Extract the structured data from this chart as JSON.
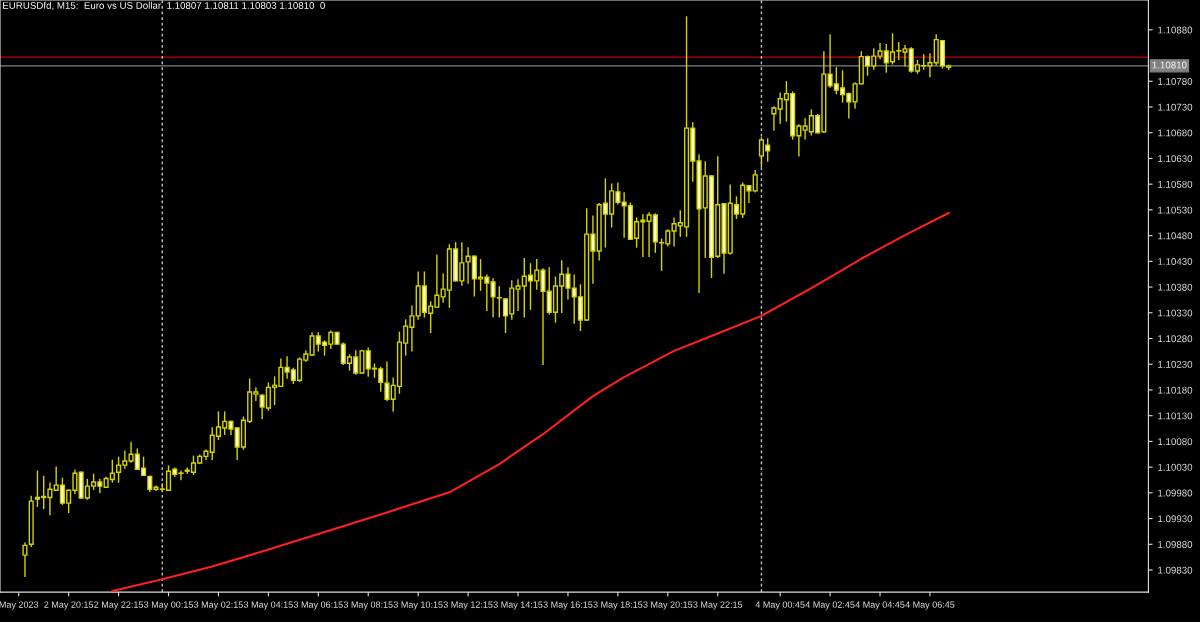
{
  "chart_data": {
    "type": "candlestick",
    "title": "EURUSDfd, M15:  Euro vs US Dollar  1.10807 1.10811 1.10803 1.10810  0",
    "color": "#d4d400",
    "x": [
      "2023-05-02T18:30",
      "2023-05-02T18:45",
      "2023-05-02T19:00",
      "2023-05-02T19:15",
      "2023-05-02T19:30",
      "2023-05-02T19:45",
      "2023-05-02T20:00",
      "2023-05-02T20:15",
      "2023-05-02T20:30",
      "2023-05-02T20:45",
      "2023-05-02T21:00",
      "2023-05-02T21:15",
      "2023-05-02T21:30",
      "2023-05-02T21:45",
      "2023-05-02T22:00",
      "2023-05-02T22:15",
      "2023-05-02T22:30",
      "2023-05-02T22:45",
      "2023-05-02T23:00",
      "2023-05-02T23:15",
      "2023-05-02T23:30",
      "2023-05-02T23:45",
      "2023-05-03T00:00",
      "2023-05-03T00:15",
      "2023-05-03T00:30",
      "2023-05-03T00:45",
      "2023-05-03T01:00",
      "2023-05-03T01:15",
      "2023-05-03T01:30",
      "2023-05-03T01:45",
      "2023-05-03T02:00",
      "2023-05-03T02:15",
      "2023-05-03T02:30",
      "2023-05-03T02:45",
      "2023-05-03T03:00",
      "2023-05-03T03:15",
      "2023-05-03T03:30",
      "2023-05-03T03:45",
      "2023-05-03T04:00",
      "2023-05-03T04:15",
      "2023-05-03T04:30",
      "2023-05-03T04:45",
      "2023-05-03T05:00",
      "2023-05-03T05:15",
      "2023-05-03T05:30",
      "2023-05-03T05:45",
      "2023-05-03T06:00",
      "2023-05-03T06:15",
      "2023-05-03T06:30",
      "2023-05-03T06:45",
      "2023-05-03T07:00",
      "2023-05-03T07:15",
      "2023-05-03T07:30",
      "2023-05-03T07:45",
      "2023-05-03T08:00",
      "2023-05-03T08:15",
      "2023-05-03T08:30",
      "2023-05-03T08:45",
      "2023-05-03T09:00",
      "2023-05-03T09:15",
      "2023-05-03T09:30",
      "2023-05-03T09:45",
      "2023-05-03T10:00",
      "2023-05-03T10:15",
      "2023-05-03T10:30",
      "2023-05-03T10:45",
      "2023-05-03T11:00",
      "2023-05-03T11:15",
      "2023-05-03T11:30",
      "2023-05-03T11:45",
      "2023-05-03T12:00",
      "2023-05-03T12:15",
      "2023-05-03T12:30",
      "2023-05-03T12:45",
      "2023-05-03T13:00",
      "2023-05-03T13:15",
      "2023-05-03T13:30",
      "2023-05-03T13:45",
      "2023-05-03T14:00",
      "2023-05-03T14:15",
      "2023-05-03T14:30",
      "2023-05-03T14:45",
      "2023-05-03T15:00",
      "2023-05-03T15:15",
      "2023-05-03T15:30",
      "2023-05-03T15:45",
      "2023-05-03T16:00",
      "2023-05-03T16:15",
      "2023-05-03T16:30",
      "2023-05-03T16:45",
      "2023-05-03T17:00",
      "2023-05-03T17:15",
      "2023-05-03T17:30",
      "2023-05-03T17:45",
      "2023-05-03T18:00",
      "2023-05-03T18:15",
      "2023-05-03T18:30",
      "2023-05-03T18:45",
      "2023-05-03T19:00",
      "2023-05-03T19:15",
      "2023-05-03T19:30",
      "2023-05-03T19:45",
      "2023-05-03T20:00",
      "2023-05-03T20:15",
      "2023-05-03T20:30",
      "2023-05-03T20:45",
      "2023-05-03T21:00",
      "2023-05-03T21:15",
      "2023-05-03T21:30",
      "2023-05-03T21:45",
      "2023-05-03T22:00",
      "2023-05-03T22:15",
      "2023-05-03T22:30",
      "2023-05-03T22:45",
      "2023-05-03T23:00",
      "2023-05-03T23:15",
      "2023-05-03T23:30",
      "2023-05-03T23:45",
      "2023-05-04T00:00",
      "2023-05-04T00:15",
      "2023-05-04T00:30",
      "2023-05-04T00:45",
      "2023-05-04T01:00",
      "2023-05-04T01:15",
      "2023-05-04T01:30",
      "2023-05-04T01:45",
      "2023-05-04T02:00",
      "2023-05-04T02:15",
      "2023-05-04T02:30",
      "2023-05-04T02:45",
      "2023-05-04T03:00",
      "2023-05-04T03:15",
      "2023-05-04T03:30",
      "2023-05-04T03:45",
      "2023-05-04T04:00",
      "2023-05-04T04:15",
      "2023-05-04T04:30",
      "2023-05-04T04:45",
      "2023-05-04T05:00",
      "2023-05-04T05:15",
      "2023-05-04T05:30",
      "2023-05-04T05:45",
      "2023-05-04T06:00",
      "2023-05-04T06:15",
      "2023-05-04T06:30",
      "2023-05-04T06:45",
      "2023-05-04T07:00",
      "2023-05-04T07:15",
      "2023-05-04T07:30"
    ],
    "ohlc": [
      [
        1.09859,
        1.09882,
        1.09818,
        1.09878
      ],
      [
        1.0988,
        1.09973,
        1.09876,
        1.09964
      ],
      [
        1.09968,
        1.10022,
        1.09954,
        1.09971
      ],
      [
        1.09971,
        1.10012,
        1.0995,
        1.09973
      ],
      [
        1.09971,
        1.09999,
        1.09938,
        1.09987
      ],
      [
        1.09985,
        1.1003,
        1.09985,
        1.09995
      ],
      [
        1.09995,
        1.10008,
        1.09958,
        1.0996
      ],
      [
        1.0996,
        1.09985,
        1.09942,
        1.09985
      ],
      [
        1.09985,
        1.10024,
        1.09979,
        1.10018
      ],
      [
        1.1002,
        1.1002,
        1.0997,
        1.0997
      ],
      [
        1.0997,
        1.10006,
        1.09968,
        1.09993
      ],
      [
        1.09993,
        1.10016,
        1.09987,
        1.10001
      ],
      [
        1.10001,
        1.10006,
        1.09981,
        1.09993
      ],
      [
        1.09991,
        1.1001,
        1.09991,
        1.10008
      ],
      [
        1.10006,
        1.10043,
        1.10001,
        1.10018
      ],
      [
        1.1002,
        1.10049,
        1.10001,
        1.10034
      ],
      [
        1.10034,
        1.10061,
        1.10028,
        1.10042
      ],
      [
        1.10042,
        1.10078,
        1.1004,
        1.10055
      ],
      [
        1.10055,
        1.10065,
        1.10026,
        1.10026
      ],
      [
        1.10028,
        1.10049,
        1.10014,
        1.10014
      ],
      [
        1.10012,
        1.10012,
        1.09983,
        1.09987
      ],
      [
        1.09987,
        1.09993,
        1.09985,
        1.09991
      ],
      [
        1.09987,
        1.09997,
        1.09985,
        1.09987
      ],
      [
        1.09985,
        1.10032,
        1.09985,
        1.10022
      ],
      [
        1.10026,
        1.10028,
        1.10012,
        1.10016
      ],
      [
        1.10018,
        1.10022,
        1.10006,
        1.10018
      ],
      [
        1.10022,
        1.10028,
        1.10018,
        1.10024
      ],
      [
        1.1002,
        1.10051,
        1.10016,
        1.10038
      ],
      [
        1.10038,
        1.10053,
        1.10038,
        1.10051
      ],
      [
        1.10051,
        1.10063,
        1.10045,
        1.10061
      ],
      [
        1.10059,
        1.10106,
        1.10045,
        1.10092
      ],
      [
        1.1009,
        1.10137,
        1.10084,
        1.10108
      ],
      [
        1.10106,
        1.10137,
        1.10094,
        1.10119
      ],
      [
        1.10119,
        1.10119,
        1.10094,
        1.10104
      ],
      [
        1.10106,
        1.10106,
        1.10045,
        1.10069
      ],
      [
        1.10069,
        1.10127,
        1.10065,
        1.10121
      ],
      [
        1.10119,
        1.10201,
        1.10117,
        1.10176
      ],
      [
        1.10172,
        1.10184,
        1.1016,
        1.10176
      ],
      [
        1.1017,
        1.1017,
        1.10125,
        1.10147
      ],
      [
        1.10145,
        1.10193,
        1.10141,
        1.10185
      ],
      [
        1.10185,
        1.10205,
        1.10152,
        1.10189
      ],
      [
        1.10187,
        1.1024,
        1.10187,
        1.10224
      ],
      [
        1.10224,
        1.10244,
        1.10203,
        1.10215
      ],
      [
        1.10219,
        1.10222,
        1.10193,
        1.10199
      ],
      [
        1.10199,
        1.10242,
        1.10197,
        1.1024
      ],
      [
        1.10238,
        1.10256,
        1.10236,
        1.1025
      ],
      [
        1.10248,
        1.10291,
        1.10248,
        1.10285
      ],
      [
        1.10285,
        1.10291,
        1.10256,
        1.10269
      ],
      [
        1.10273,
        1.10275,
        1.10248,
        1.10267
      ],
      [
        1.10269,
        1.10294,
        1.10261,
        1.10292
      ],
      [
        1.10292,
        1.10292,
        1.10269,
        1.10269
      ],
      [
        1.10269,
        1.10271,
        1.1023,
        1.10232
      ],
      [
        1.10232,
        1.10248,
        1.10219,
        1.10244
      ],
      [
        1.10244,
        1.10256,
        1.10211,
        1.10213
      ],
      [
        1.10213,
        1.10257,
        1.10213,
        1.10256
      ],
      [
        1.10256,
        1.10261,
        1.10207,
        1.10221
      ],
      [
        1.10222,
        1.1023,
        1.10205,
        1.10221
      ],
      [
        1.10221,
        1.10224,
        1.10178,
        1.10195
      ],
      [
        1.10193,
        1.10234,
        1.1016,
        1.10162
      ],
      [
        1.10162,
        1.10203,
        1.10139,
        1.10189
      ],
      [
        1.10187,
        1.10292,
        1.10174,
        1.10273
      ],
      [
        1.10271,
        1.10316,
        1.10248,
        1.10304
      ],
      [
        1.10302,
        1.10343,
        1.10256,
        1.10324
      ],
      [
        1.10324,
        1.10409,
        1.10318,
        1.10382
      ],
      [
        1.10382,
        1.10409,
        1.10322,
        1.10331
      ],
      [
        1.10329,
        1.10351,
        1.10292,
        1.10343
      ],
      [
        1.10341,
        1.10442,
        1.10341,
        1.10364
      ],
      [
        1.10361,
        1.10405,
        1.10351,
        1.10376
      ],
      [
        1.10374,
        1.10462,
        1.10341,
        1.10454
      ],
      [
        1.10454,
        1.10466,
        1.10392,
        1.10392
      ],
      [
        1.10392,
        1.10466,
        1.10384,
        1.10427
      ],
      [
        1.10429,
        1.10456,
        1.10388,
        1.1044
      ],
      [
        1.1044,
        1.1044,
        1.10363,
        1.10396
      ],
      [
        1.10396,
        1.10433,
        1.10374,
        1.10399
      ],
      [
        1.10399,
        1.10403,
        1.10335,
        1.10388
      ],
      [
        1.1039,
        1.10396,
        1.10322,
        1.10361
      ],
      [
        1.10359,
        1.1038,
        1.10322,
        1.10359
      ],
      [
        1.10357,
        1.10357,
        1.10292,
        1.10324
      ],
      [
        1.10328,
        1.10392,
        1.10318,
        1.10378
      ],
      [
        1.10376,
        1.10394,
        1.10335,
        1.10382
      ],
      [
        1.10382,
        1.10435,
        1.10322,
        1.10401
      ],
      [
        1.10403,
        1.10425,
        1.10337,
        1.10392
      ],
      [
        1.10392,
        1.10433,
        1.10376,
        1.10413
      ],
      [
        1.10413,
        1.10415,
        1.1023,
        1.10372
      ],
      [
        1.10372,
        1.10417,
        1.10328,
        1.10331
      ],
      [
        1.10331,
        1.10399,
        1.10312,
        1.10382
      ],
      [
        1.10382,
        1.10431,
        1.10331,
        1.10405
      ],
      [
        1.10405,
        1.10417,
        1.10357,
        1.10378
      ],
      [
        1.10378,
        1.10403,
        1.1031,
        1.10361
      ],
      [
        1.10361,
        1.10384,
        1.10296,
        1.10316
      ],
      [
        1.10316,
        1.10532,
        1.10316,
        1.10483
      ],
      [
        1.10483,
        1.10518,
        1.10388,
        1.1045
      ],
      [
        1.1045,
        1.10542,
        1.10433,
        1.1054
      ],
      [
        1.10543,
        1.1059,
        1.10458,
        1.10522
      ],
      [
        1.10522,
        1.1058,
        1.10497,
        1.10567
      ],
      [
        1.10565,
        1.10582,
        1.10542,
        1.10545
      ],
      [
        1.10545,
        1.10563,
        1.10477,
        1.10538
      ],
      [
        1.10538,
        1.10543,
        1.10473,
        1.10473
      ],
      [
        1.10475,
        1.10514,
        1.10458,
        1.10507
      ],
      [
        1.10507,
        1.1052,
        1.1044,
        1.1051
      ],
      [
        1.10508,
        1.10524,
        1.1044,
        1.1052
      ],
      [
        1.1052,
        1.10522,
        1.10448,
        1.10468
      ],
      [
        1.10466,
        1.10473,
        1.10413,
        1.10466
      ],
      [
        1.10464,
        1.10491,
        1.1046,
        1.10489
      ],
      [
        1.10489,
        1.10514,
        1.1046,
        1.10503
      ],
      [
        1.10499,
        1.10528,
        1.10479,
        1.10505
      ],
      [
        1.10497,
        1.10905,
        1.10479,
        1.10689
      ],
      [
        1.10689,
        1.10699,
        1.10586,
        1.10625
      ],
      [
        1.10625,
        1.10637,
        1.1037,
        1.10532
      ],
      [
        1.10534,
        1.10623,
        1.10438,
        1.10596
      ],
      [
        1.10596,
        1.10596,
        1.10399,
        1.10438
      ],
      [
        1.1044,
        1.10633,
        1.10438,
        1.1054
      ],
      [
        1.10542,
        1.10542,
        1.10407,
        1.10446
      ],
      [
        1.10446,
        1.10578,
        1.10444,
        1.10543
      ],
      [
        1.1054,
        1.10555,
        1.10514,
        1.10522
      ],
      [
        1.10522,
        1.10582,
        1.10516,
        1.10578
      ],
      [
        1.10577,
        1.10577,
        1.10545,
        1.10567
      ],
      [
        1.10567,
        1.10606,
        1.10565,
        1.10598
      ],
      [
        1.10635,
        1.1067,
        1.10614,
        1.10666
      ],
      [
        1.10656,
        1.10668,
        1.10625,
        1.10645
      ],
      [
        1.10717,
        1.1073,
        1.10685,
        1.10728
      ],
      [
        1.10726,
        1.10757,
        1.10699,
        1.10746
      ],
      [
        1.10744,
        1.10779,
        1.10703,
        1.10756
      ],
      [
        1.10756,
        1.10759,
        1.10668,
        1.10674
      ],
      [
        1.10674,
        1.10695,
        1.10635,
        1.10693
      ],
      [
        1.10685,
        1.10707,
        1.10668,
        1.10693
      ],
      [
        1.10682,
        1.10724,
        1.10676,
        1.10713
      ],
      [
        1.10713,
        1.10715,
        1.1068,
        1.1068
      ],
      [
        1.10682,
        1.10837,
        1.10682,
        1.10794
      ],
      [
        1.10794,
        1.1087,
        1.10769,
        1.10771
      ],
      [
        1.10775,
        1.10806,
        1.10756,
        1.10763
      ],
      [
        1.10767,
        1.108,
        1.1074,
        1.10754
      ],
      [
        1.10756,
        1.10757,
        1.10709,
        1.1074
      ],
      [
        1.1074,
        1.10777,
        1.10728,
        1.10775
      ],
      [
        1.10775,
        1.10837,
        1.10775,
        1.10828
      ],
      [
        1.10828,
        1.10829,
        1.10792,
        1.1081
      ],
      [
        1.1081,
        1.10843,
        1.10804,
        1.10829
      ],
      [
        1.10829,
        1.10853,
        1.10824,
        1.10839
      ],
      [
        1.10839,
        1.10851,
        1.10798,
        1.10816
      ],
      [
        1.10818,
        1.10872,
        1.10814,
        1.10837
      ],
      [
        1.10839,
        1.10855,
        1.10822,
        1.10839
      ],
      [
        1.10837,
        1.10849,
        1.1081,
        1.10843
      ],
      [
        1.10843,
        1.10845,
        1.10798,
        1.108
      ],
      [
        1.108,
        1.1082,
        1.10796,
        1.10812
      ],
      [
        1.1081,
        1.10831,
        1.10804,
        1.1081
      ],
      [
        1.1081,
        1.10833,
        1.10789,
        1.10816
      ],
      [
        1.10816,
        1.1087,
        1.10812,
        1.10861
      ],
      [
        1.10859,
        1.10859,
        1.10806,
        1.1081
      ],
      [
        1.10807,
        1.10811,
        1.10803,
        1.1081
      ]
    ],
    "series": [
      {
        "type": "line",
        "color": "#ff2020",
        "x": [
          "2023-05-02T22:00",
          "2023-05-03T00:00",
          "2023-05-03T02:00",
          "2023-05-03T04:00",
          "2023-05-03T06:15",
          "2023-05-03T09:00",
          "2023-05-03T11:30",
          "2023-05-03T13:30",
          "2023-05-03T15:15",
          "2023-05-03T17:15",
          "2023-05-03T18:30",
          "2023-05-03T20:30",
          "2023-05-03T22:00",
          "2023-05-04T00:00",
          "2023-05-04T02:00",
          "2023-05-04T04:00",
          "2023-05-04T05:45",
          "2023-05-04T07:30"
        ],
        "values": [
          1.09789,
          1.09812,
          1.09837,
          1.09866,
          1.099,
          1.09942,
          1.09981,
          1.10036,
          1.10094,
          1.10168,
          1.10205,
          1.10256,
          1.10285,
          1.10324,
          1.10378,
          1.10435,
          1.10481,
          1.10524
        ]
      }
    ],
    "ref_lines": [
      {
        "axis": "y",
        "value": 1.10827,
        "color": "#c00000",
        "line_style": "solid"
      },
      {
        "axis": "y",
        "value": 1.1081,
        "label": "1.10810",
        "color": "#808080",
        "line_style": "solid"
      },
      {
        "axis": "x",
        "value": "2023-05-03T00:00",
        "color": "#c0c0c0",
        "line_style": "dashed"
      },
      {
        "axis": "x",
        "value": "2023-05-04T00:00",
        "color": "#c0c0c0",
        "line_style": "dashed"
      }
    ],
    "xlim": [
      "2023-05-02T17:30",
      "2023-05-04T15:30"
    ],
    "xticks": [
      {
        "value": "2023-05-02T18:15",
        "label": "May 2023"
      },
      {
        "value": "2023-05-02T20:15",
        "label": "2 May 20:15"
      },
      {
        "value": "2023-05-02T22:15",
        "label": "2 May 22:15"
      },
      {
        "value": "2023-05-03T00:15",
        "label": "3 May 00:15"
      },
      {
        "value": "2023-05-03T02:15",
        "label": "3 May 02:15"
      },
      {
        "value": "2023-05-03T04:15",
        "label": "3 May 04:15"
      },
      {
        "value": "2023-05-03T06:15",
        "label": "3 May 06:15"
      },
      {
        "value": "2023-05-03T08:15",
        "label": "3 May 08:15"
      },
      {
        "value": "2023-05-03T10:15",
        "label": "3 May 10:15"
      },
      {
        "value": "2023-05-03T12:15",
        "label": "3 May 12:15"
      },
      {
        "value": "2023-05-03T14:15",
        "label": "3 May 14:15"
      },
      {
        "value": "2023-05-03T16:15",
        "label": "3 May 16:15"
      },
      {
        "value": "2023-05-03T18:15",
        "label": "3 May 18:15"
      },
      {
        "value": "2023-05-03T20:15",
        "label": "3 May 20:15"
      },
      {
        "value": "2023-05-03T22:15",
        "label": "3 May 22:15"
      },
      {
        "value": "2023-05-04T00:45",
        "label": "4 May 00:45"
      },
      {
        "value": "2023-05-04T02:45",
        "label": "4 May 02:45"
      },
      {
        "value": "2023-05-04T04:45",
        "label": "4 May 04:45"
      },
      {
        "value": "2023-05-04T06:45",
        "label": "4 May 06:45"
      }
    ],
    "ylim": [
      1.09787,
      1.10938
    ],
    "yticks": [
      {
        "value": 1.1088,
        "label": "1.10880"
      },
      {
        "value": 1.1078,
        "label": "1.10780"
      },
      {
        "value": 1.1073,
        "label": "1.10730"
      },
      {
        "value": 1.1068,
        "label": "1.10680"
      },
      {
        "value": 1.1063,
        "label": "1.10630"
      },
      {
        "value": 1.1058,
        "label": "1.10580"
      },
      {
        "value": 1.1053,
        "label": "1.10530"
      },
      {
        "value": 1.1048,
        "label": "1.10480"
      },
      {
        "value": 1.1043,
        "label": "1.10430"
      },
      {
        "value": 1.1038,
        "label": "1.10380"
      },
      {
        "value": 1.1033,
        "label": "1.10330"
      },
      {
        "value": 1.1028,
        "label": "1.10280"
      },
      {
        "value": 1.1023,
        "label": "1.10230"
      },
      {
        "value": 1.1018,
        "label": "1.10180"
      },
      {
        "value": 1.1013,
        "label": "1.10130"
      },
      {
        "value": 1.1008,
        "label": "1.10080"
      },
      {
        "value": 1.1003,
        "label": "1.10030"
      },
      {
        "value": 1.0998,
        "label": "1.09980"
      },
      {
        "value": 1.0993,
        "label": "1.09930"
      },
      {
        "value": 1.0988,
        "label": "1.09880"
      },
      {
        "value": 1.0983,
        "label": "1.09830"
      }
    ]
  }
}
